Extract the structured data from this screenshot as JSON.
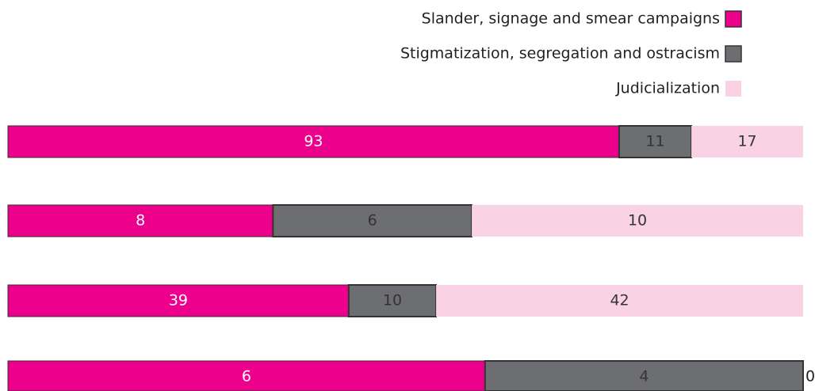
{
  "chart_data": {
    "type": "bar",
    "orientation": "horizontal",
    "stacked": "percent",
    "categories": [
      null,
      null,
      null,
      null
    ],
    "series": [
      {
        "name": "Slander, signage and smear campaigns",
        "color": "#ec008c",
        "values": [
          93,
          8,
          39,
          6
        ]
      },
      {
        "name": "Stigmatization, segregation and ostracism",
        "color": "#6d6e71",
        "values": [
          11,
          6,
          10,
          4
        ]
      },
      {
        "name": "Judicialization",
        "color": "#f9d3e3",
        "values": [
          17,
          10,
          42,
          0
        ]
      }
    ],
    "legend": "top-right"
  }
}
